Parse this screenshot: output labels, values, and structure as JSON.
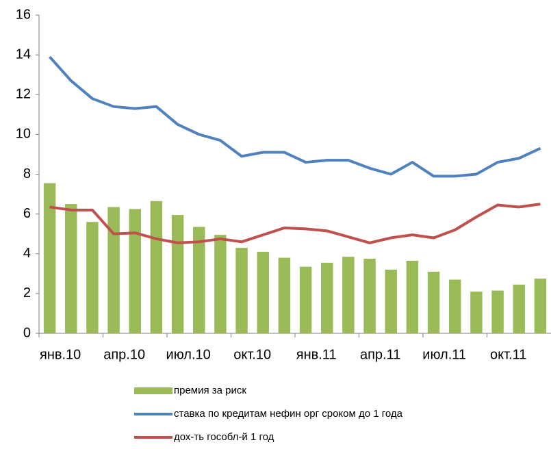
{
  "chart_data": {
    "type": "combo",
    "categories": [
      "янв.10",
      null,
      null,
      "апр.10",
      null,
      null,
      "июл.10",
      null,
      null,
      "окт.10",
      null,
      null,
      "янв.11",
      null,
      null,
      "апр.11",
      null,
      null,
      "июл.11",
      null,
      null,
      "окт.11",
      null,
      null
    ],
    "series": [
      {
        "name": "премия за риск",
        "type": "bar",
        "color": "#9bbb59",
        "values": [
          7.55,
          6.5,
          5.6,
          6.35,
          6.25,
          6.65,
          5.95,
          5.35,
          4.95,
          4.3,
          4.1,
          3.8,
          3.35,
          3.55,
          3.85,
          3.75,
          3.2,
          3.65,
          3.1,
          2.7,
          2.1,
          2.15,
          2.45,
          2.75
        ]
      },
      {
        "name": "ставка по кредитам нефин орг сроком до 1 года",
        "type": "line",
        "color": "#4f81bd",
        "values": [
          13.9,
          12.7,
          11.8,
          11.4,
          11.3,
          11.4,
          10.5,
          10.0,
          9.7,
          8.9,
          9.1,
          9.1,
          8.6,
          8.7,
          8.7,
          8.3,
          8.0,
          8.6,
          7.9,
          7.9,
          8.0,
          8.6,
          8.8,
          9.3
        ]
      },
      {
        "name": "дох-ть гособл-й 1 год",
        "type": "line",
        "color": "#c0504d",
        "values": [
          6.35,
          6.2,
          6.2,
          5.0,
          5.05,
          4.75,
          4.55,
          4.6,
          4.75,
          4.6,
          4.95,
          5.3,
          5.25,
          5.15,
          4.85,
          4.55,
          4.8,
          4.95,
          4.8,
          5.2,
          5.85,
          6.45,
          6.35,
          6.5
        ]
      }
    ],
    "ylim": [
      0,
      16
    ],
    "yticks": [
      0,
      2,
      4,
      6,
      8,
      10,
      12,
      14,
      16
    ],
    "grid": false
  }
}
